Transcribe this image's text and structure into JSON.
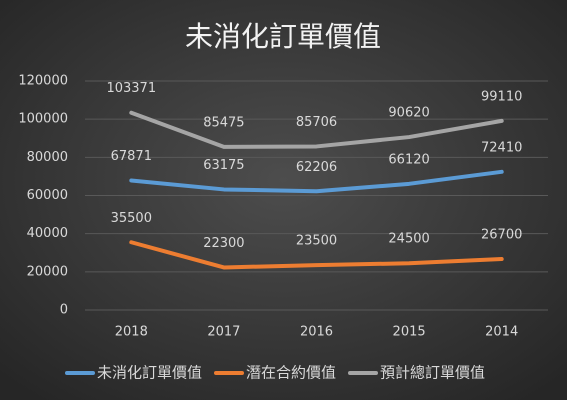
{
  "chart_data": {
    "type": "line",
    "title": "未消化訂單價值",
    "categories": [
      "2018",
      "2017",
      "2016",
      "2015",
      "2014"
    ],
    "series": [
      {
        "name": "未消化訂單價值",
        "color": "#5b9bd5",
        "values": [
          67871,
          63175,
          62206,
          66120,
          72410
        ]
      },
      {
        "name": "潛在合約價值",
        "color": "#ed7d31",
        "values": [
          35500,
          22300,
          23500,
          24500,
          26700
        ]
      },
      {
        "name": "預計總訂單價值",
        "color": "#a5a5a5",
        "values": [
          103371,
          85475,
          85706,
          90620,
          99110
        ]
      }
    ],
    "ylim": [
      0,
      120000
    ],
    "yticks": [
      0,
      20000,
      40000,
      60000,
      80000,
      100000,
      120000
    ],
    "grid": true,
    "legend": "bottom"
  }
}
